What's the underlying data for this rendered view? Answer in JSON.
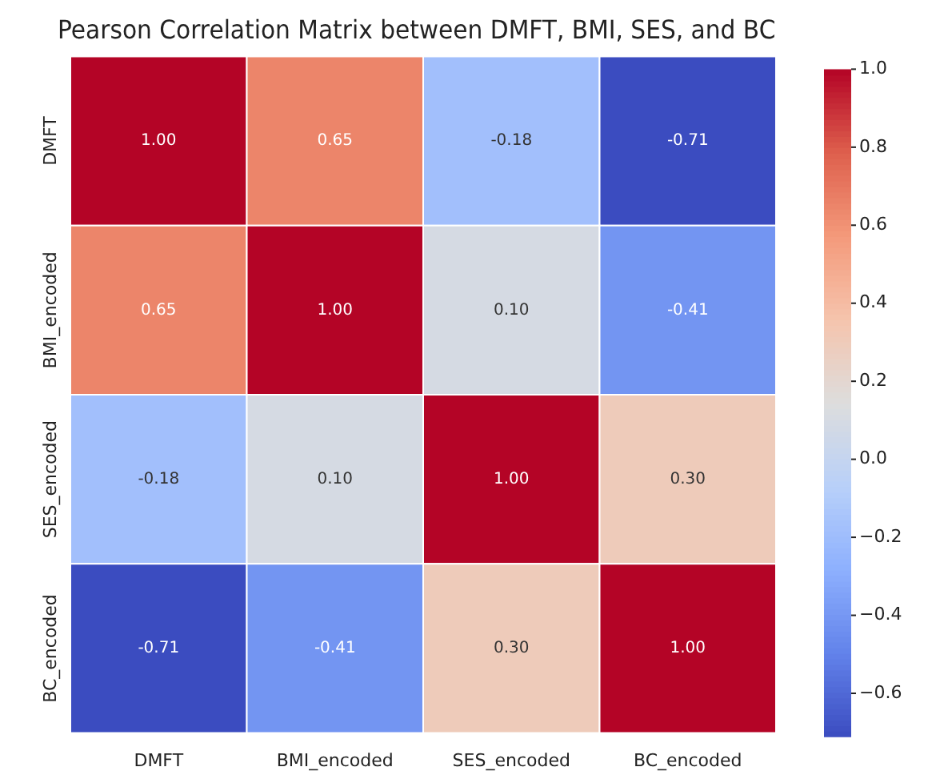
{
  "chart_data": {
    "type": "heatmap",
    "title": "Pearson Correlation Matrix between DMFT, BMI, SES, and BC",
    "categories": [
      "DMFT",
      "BMI_encoded",
      "SES_encoded",
      "BC_encoded"
    ],
    "y_categories": [
      "DMFT",
      "BMI_encoded",
      "SES_encoded",
      "BC_encoded"
    ],
    "cells": [
      [
        1.0,
        0.65,
        -0.18,
        -0.71
      ],
      [
        0.65,
        1.0,
        0.1,
        -0.41
      ],
      [
        -0.18,
        0.1,
        1.0,
        0.3
      ],
      [
        -0.71,
        -0.41,
        0.3,
        1.0
      ]
    ],
    "cell_labels": [
      [
        "1.00",
        "0.65",
        "-0.18",
        "-0.71"
      ],
      [
        "0.65",
        "1.00",
        "0.10",
        "-0.41"
      ],
      [
        "-0.18",
        "0.10",
        "1.00",
        "0.30"
      ],
      [
        "-0.71",
        "-0.41",
        "0.30",
        "1.00"
      ]
    ],
    "clim": [
      -0.71,
      1.0
    ],
    "cticks": [
      {
        "value": -0.6,
        "label": "−0.6"
      },
      {
        "value": -0.4,
        "label": "−0.4"
      },
      {
        "value": -0.2,
        "label": "−0.2"
      },
      {
        "value": 0.0,
        "label": "0.0"
      },
      0.2,
      0.4,
      0.6,
      0.8,
      {
        "value": 1.0,
        "label": "1.0"
      }
    ]
  }
}
